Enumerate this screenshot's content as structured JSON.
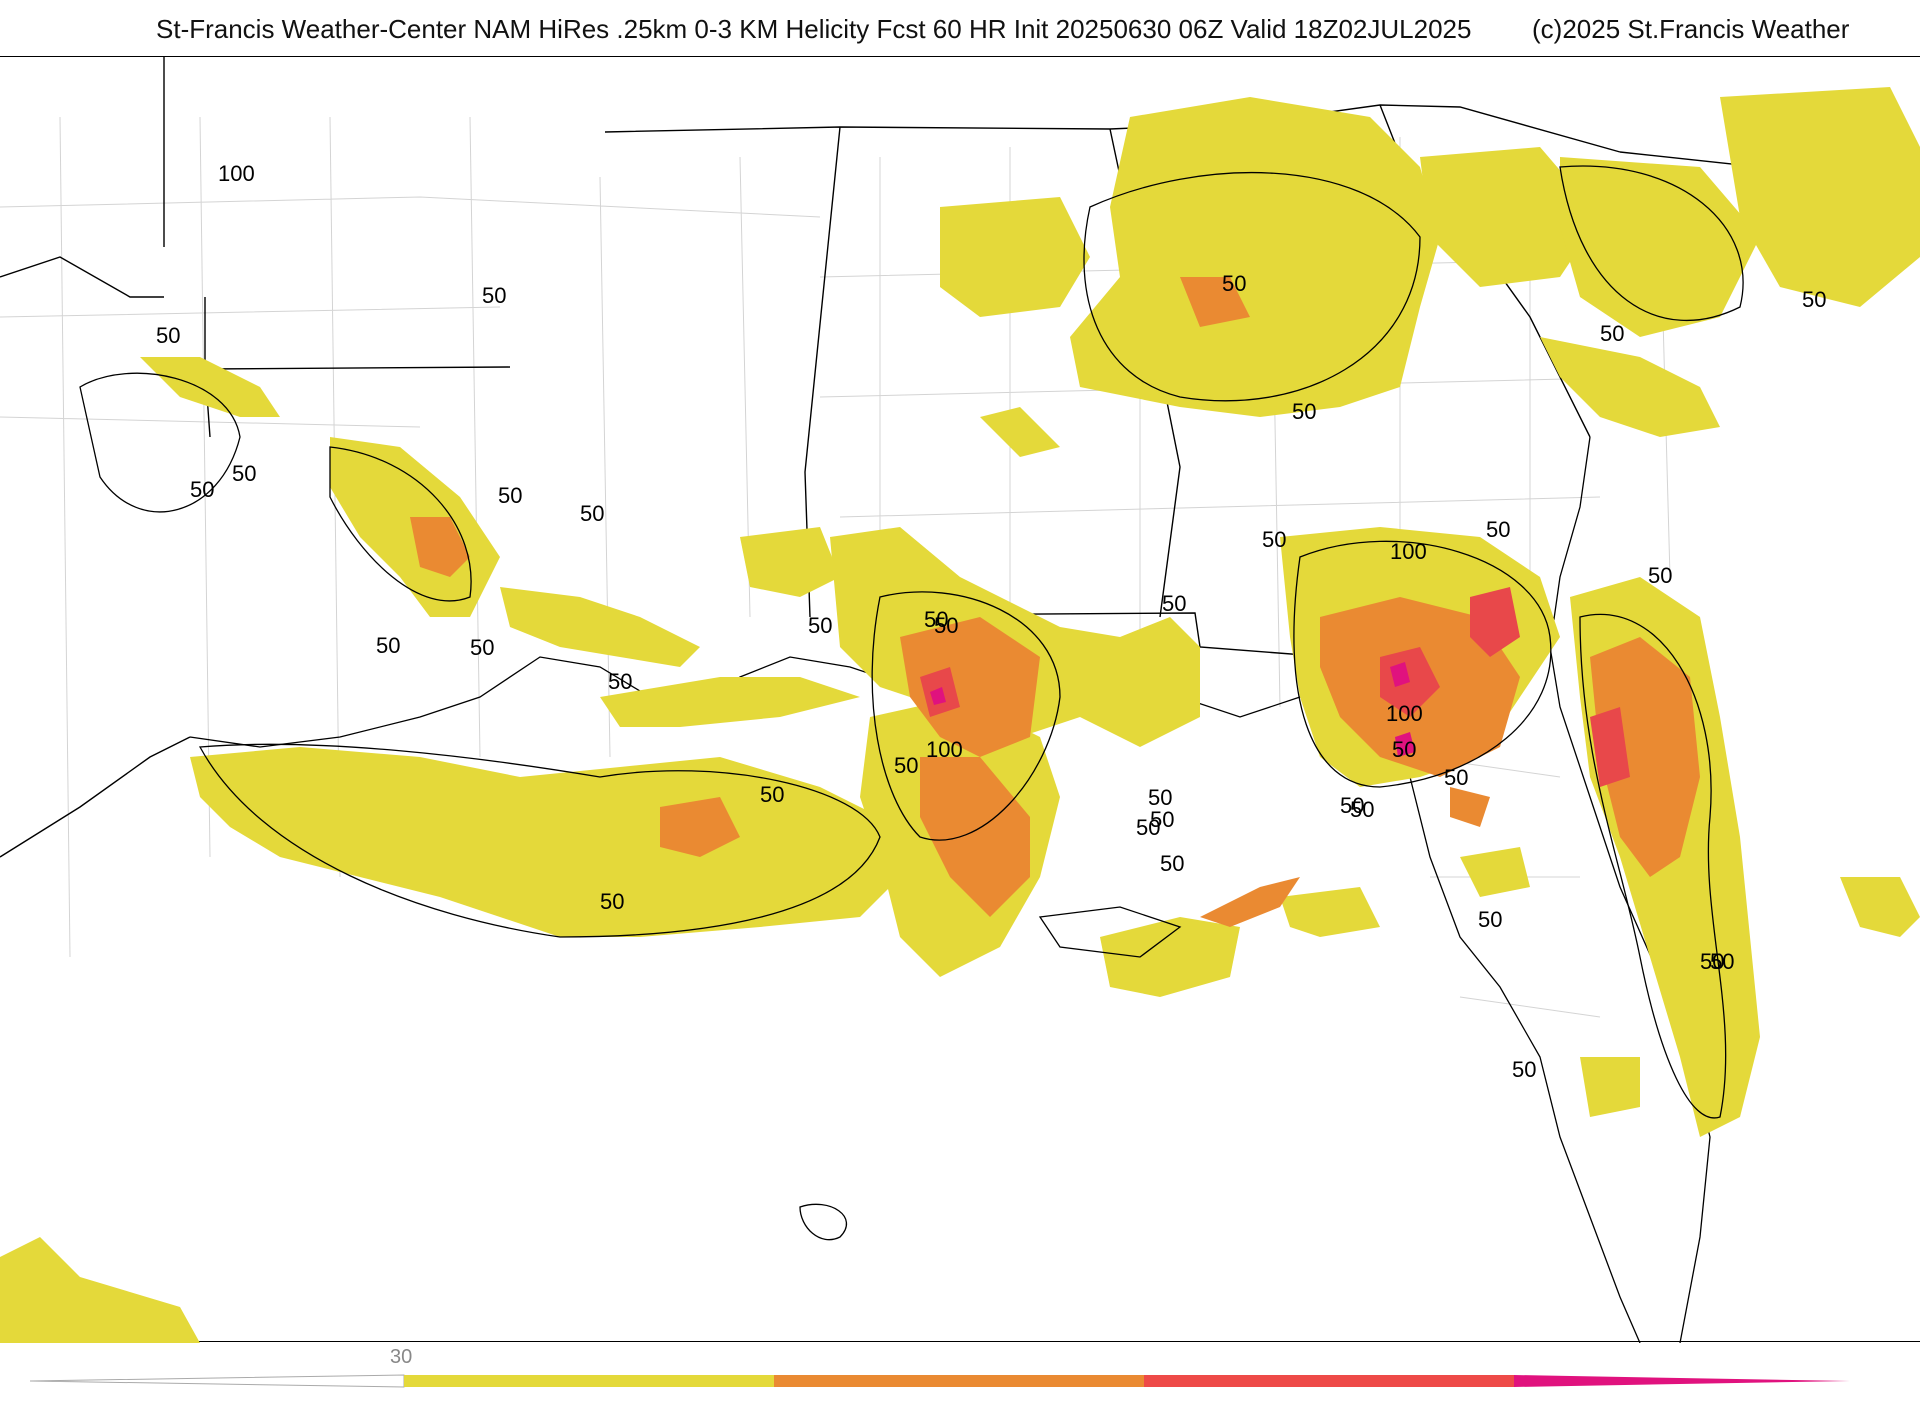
{
  "header": {
    "title": "St-Francis Weather-Center NAM HiRes .25km 0-3 KM Helicity Fcst 60 HR Init 20250630 06Z  Valid 18Z02JUL2025",
    "copyright": "(c)2025 St.Francis Weather"
  },
  "map": {
    "field": "0-3 KM Helicity",
    "contour_labels": [
      "100",
      "50",
      "50",
      "50",
      "50",
      "50",
      "50",
      "50",
      "50",
      "50",
      "50",
      "50",
      "50",
      "50",
      "50",
      "50",
      "100",
      "50",
      "50",
      "50",
      "50",
      "50",
      "50",
      "50",
      "50",
      "50",
      "50",
      "100",
      "50",
      "100",
      "50",
      "50",
      "50",
      "50",
      "50",
      "50",
      "50",
      "50",
      "50"
    ],
    "colors": {
      "yellow": "#e4d93a",
      "orange": "#ea8a32",
      "red": "#e8484a",
      "magenta": "#e0127e",
      "state_lines": "#000000",
      "county_lines": "#cfcfcf"
    }
  },
  "colorbar": {
    "tick_label": "30",
    "segments": [
      "#e4d93a",
      "#ea8a32",
      "#ee4a48",
      "#e0127e"
    ]
  }
}
